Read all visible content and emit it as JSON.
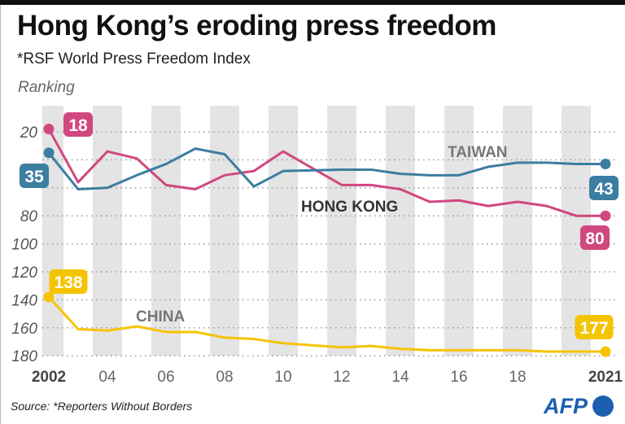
{
  "title": "Hong Kong’s eroding press freedom",
  "subtitle": "*RSF World Press Freedom Index",
  "source": "Source: *Reporters Without Borders",
  "logo": "AFP",
  "chart_data": {
    "type": "line",
    "ylabel": "Ranking",
    "yaxis_inverted": true,
    "ylim": [
      180,
      20
    ],
    "yticks": [
      20,
      40,
      60,
      80,
      100,
      120,
      140,
      160,
      180
    ],
    "ytick_labels": [
      "20",
      "",
      "",
      "80",
      "100",
      "120",
      "140",
      "160",
      "180"
    ],
    "xticks": [
      2002,
      2004,
      2006,
      2008,
      2010,
      2012,
      2014,
      2016,
      2018,
      2021
    ],
    "xtick_labels": [
      "2002",
      "04",
      "06",
      "08",
      "10",
      "12",
      "14",
      "16",
      "18",
      "2021"
    ],
    "grid": "dotted horizontal",
    "x": [
      2002,
      2003,
      2004,
      2005,
      2006,
      2007,
      2008,
      2009,
      2010,
      2012,
      2013,
      2014,
      2015,
      2016,
      2017,
      2018,
      2019,
      2020,
      2021
    ],
    "series": [
      {
        "name": "HONG KONG",
        "color": "#d1477f",
        "values": [
          18,
          56,
          34,
          39,
          58,
          61,
          51,
          48,
          34,
          58,
          58,
          61,
          70,
          69,
          73,
          70,
          73,
          80,
          80
        ],
        "start_label": "18",
        "end_label": "80"
      },
      {
        "name": "TAIWAN",
        "color": "#3b7ea1",
        "values": [
          35,
          61,
          60,
          51,
          43,
          32,
          36,
          59,
          48,
          47,
          47,
          50,
          51,
          51,
          45,
          42,
          42,
          43,
          43
        ],
        "start_label": "35",
        "end_label": "43"
      },
      {
        "name": "CHINA",
        "color": "#f5c400",
        "values": [
          138,
          161,
          162,
          159,
          163,
          163,
          167,
          168,
          171,
          174,
          173,
          175,
          176,
          176,
          176,
          176,
          177,
          177,
          177
        ],
        "start_label": "138",
        "end_label": "177"
      }
    ]
  }
}
